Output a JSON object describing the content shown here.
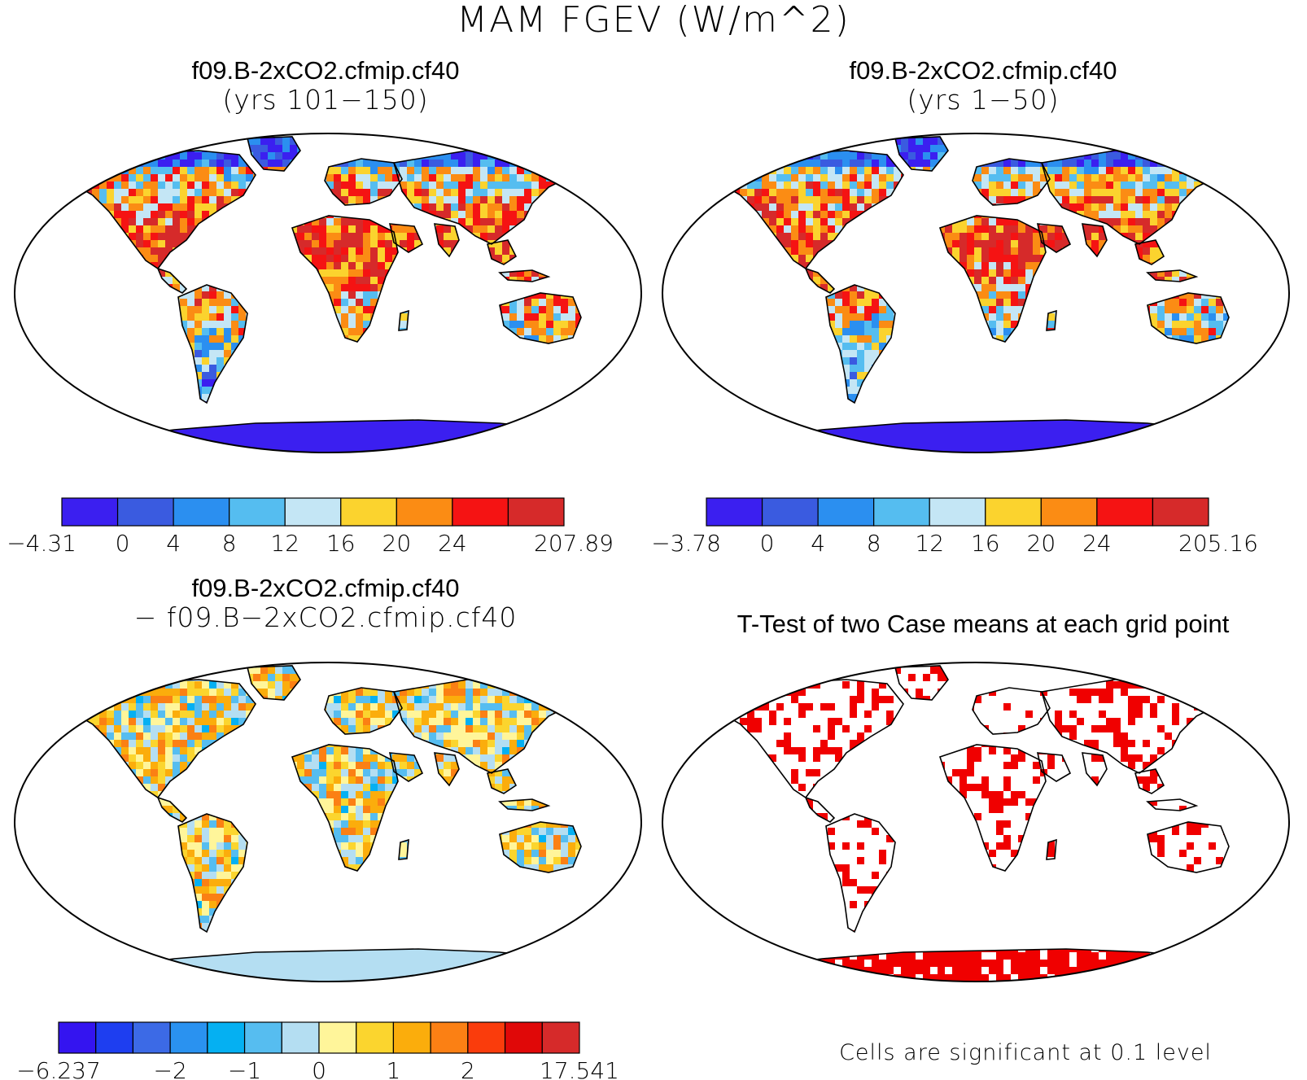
{
  "title": "MAM FGEV (W/m^2)",
  "panels": [
    {
      "id": "p1",
      "line1": "f09.B-2xCO2.cfmip.cf40",
      "line2": "(yrs 101−150)",
      "colorbar": {
        "colors": [
          "#3b1ff0",
          "#3a5be0",
          "#2b8ff0",
          "#55bdf0",
          "#c4e6f5",
          "#fbd32e",
          "#fb8c14",
          "#f51313",
          "#d62a2a"
        ],
        "labels": [
          "−4.31",
          "0",
          "4",
          "8",
          "12",
          "16",
          "20",
          "24",
          "207.89"
        ]
      }
    },
    {
      "id": "p2",
      "line1": "f09.B-2xCO2.cfmip.cf40",
      "line2": "(yrs 1−50)",
      "colorbar": {
        "colors": [
          "#3b1ff0",
          "#3a5be0",
          "#2b8ff0",
          "#55bdf0",
          "#c4e6f5",
          "#fbd32e",
          "#fb8c14",
          "#f51313",
          "#d62a2a"
        ],
        "labels": [
          "−3.78",
          "0",
          "4",
          "8",
          "12",
          "16",
          "20",
          "24",
          "205.16"
        ]
      }
    },
    {
      "id": "p3",
      "line1": "f09.B-2xCO2.cfmip.cf40",
      "line2": "− f09.B−2xCO2.cfmip.cf40",
      "colorbar": {
        "colors": [
          "#3414f0",
          "#1e3ef0",
          "#3c6ae6",
          "#2a92f0",
          "#05b0f2",
          "#56bdf0",
          "#b4def2",
          "#fff59a",
          "#fbd52e",
          "#fbad0c",
          "#fb8014",
          "#fa3c0c",
          "#e00808",
          "#d62a2a"
        ],
        "labels": [
          "−6.237",
          "−2",
          "−1",
          "0",
          "1",
          "2",
          "17.541"
        ]
      }
    },
    {
      "id": "p4",
      "line1": "T-Test of two Case means at each grid point",
      "note": "Cells are significant at 0.1 level"
    }
  ]
}
